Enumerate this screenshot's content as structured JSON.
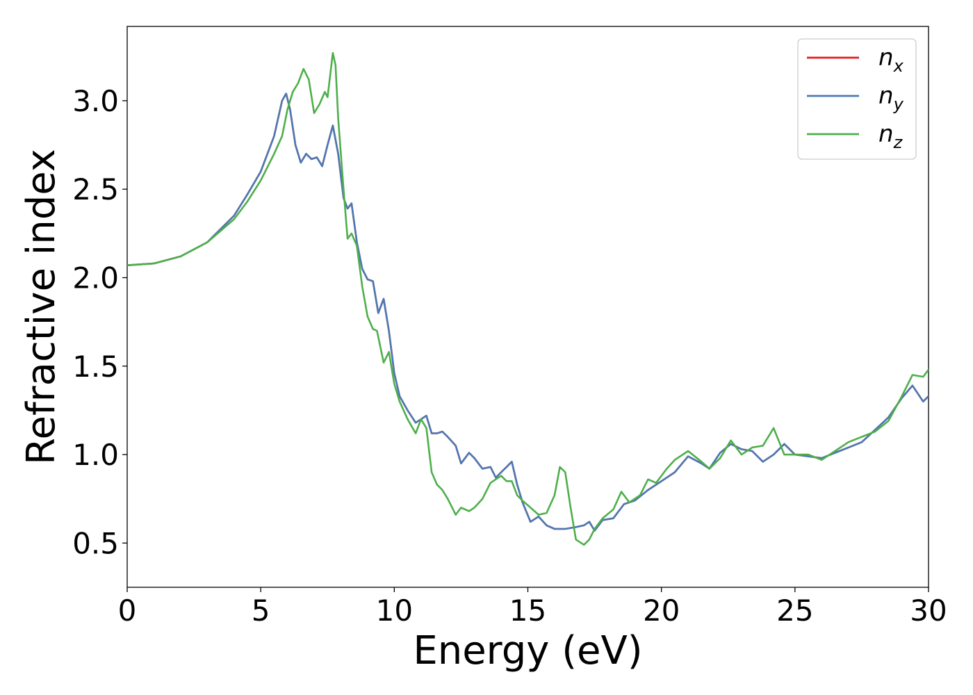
{
  "chart_data": {
    "type": "line",
    "xlabel": "Energy (eV)",
    "ylabel": "Refractive index",
    "xlim": [
      0,
      30
    ],
    "ylim": [
      0.25,
      3.42
    ],
    "xticks": [
      0,
      5,
      10,
      15,
      20,
      25,
      30
    ],
    "xtick_labels": [
      "0",
      "5",
      "10",
      "15",
      "20",
      "25",
      "30"
    ],
    "yticks": [
      0.5,
      1.0,
      1.5,
      2.0,
      2.5,
      3.0
    ],
    "ytick_labels": [
      "0.5",
      "1.0",
      "1.5",
      "2.0",
      "2.5",
      "3.0"
    ],
    "grid": false,
    "legend_position": "top-right",
    "series": [
      {
        "name": "n_x",
        "base": "n",
        "sub": "x",
        "color": "#e41a1c",
        "points": [
          [
            0,
            2.07
          ],
          [
            1,
            2.08
          ],
          [
            2,
            2.12
          ],
          [
            3,
            2.2
          ],
          [
            4,
            2.35
          ],
          [
            4.5,
            2.47
          ],
          [
            5,
            2.6
          ],
          [
            5.5,
            2.8
          ],
          [
            5.8,
            3.0
          ],
          [
            5.95,
            3.04
          ],
          [
            6.1,
            2.95
          ],
          [
            6.3,
            2.75
          ],
          [
            6.5,
            2.65
          ],
          [
            6.7,
            2.7
          ],
          [
            6.9,
            2.67
          ],
          [
            7.1,
            2.68
          ],
          [
            7.3,
            2.63
          ],
          [
            7.5,
            2.75
          ],
          [
            7.7,
            2.86
          ],
          [
            7.9,
            2.7
          ],
          [
            8.1,
            2.45
          ],
          [
            8.25,
            2.39
          ],
          [
            8.4,
            2.42
          ],
          [
            8.6,
            2.2
          ],
          [
            8.8,
            2.05
          ],
          [
            9.0,
            1.99
          ],
          [
            9.2,
            1.98
          ],
          [
            9.4,
            1.8
          ],
          [
            9.6,
            1.88
          ],
          [
            9.8,
            1.7
          ],
          [
            10.0,
            1.46
          ],
          [
            10.2,
            1.33
          ],
          [
            10.5,
            1.25
          ],
          [
            10.8,
            1.18
          ],
          [
            11.0,
            1.2
          ],
          [
            11.2,
            1.22
          ],
          [
            11.4,
            1.12
          ],
          [
            11.6,
            1.12
          ],
          [
            11.8,
            1.13
          ],
          [
            12.0,
            1.1
          ],
          [
            12.3,
            1.05
          ],
          [
            12.5,
            0.95
          ],
          [
            12.8,
            1.01
          ],
          [
            13.0,
            0.98
          ],
          [
            13.3,
            0.92
          ],
          [
            13.6,
            0.93
          ],
          [
            13.8,
            0.87
          ],
          [
            14.0,
            0.9
          ],
          [
            14.2,
            0.93
          ],
          [
            14.4,
            0.96
          ],
          [
            14.6,
            0.83
          ],
          [
            14.8,
            0.73
          ],
          [
            15.1,
            0.62
          ],
          [
            15.4,
            0.65
          ],
          [
            15.7,
            0.6
          ],
          [
            16.0,
            0.58
          ],
          [
            16.4,
            0.58
          ],
          [
            16.8,
            0.59
          ],
          [
            17.1,
            0.6
          ],
          [
            17.3,
            0.62
          ],
          [
            17.5,
            0.57
          ],
          [
            17.8,
            0.63
          ],
          [
            18.2,
            0.64
          ],
          [
            18.6,
            0.72
          ],
          [
            19.0,
            0.74
          ],
          [
            19.5,
            0.8
          ],
          [
            20.0,
            0.85
          ],
          [
            20.5,
            0.9
          ],
          [
            21.0,
            0.99
          ],
          [
            21.5,
            0.95
          ],
          [
            21.8,
            0.92
          ],
          [
            22.2,
            1.01
          ],
          [
            22.6,
            1.06
          ],
          [
            23.0,
            1.03
          ],
          [
            23.4,
            1.02
          ],
          [
            23.8,
            0.96
          ],
          [
            24.2,
            1.0
          ],
          [
            24.6,
            1.06
          ],
          [
            25.0,
            1.0
          ],
          [
            25.5,
            0.99
          ],
          [
            26.0,
            0.98
          ],
          [
            26.5,
            1.01
          ],
          [
            27.0,
            1.04
          ],
          [
            27.5,
            1.07
          ],
          [
            28.0,
            1.14
          ],
          [
            28.5,
            1.21
          ],
          [
            29.0,
            1.32
          ],
          [
            29.4,
            1.39
          ],
          [
            29.8,
            1.3
          ],
          [
            30.0,
            1.33
          ]
        ]
      },
      {
        "name": "n_y",
        "base": "n",
        "sub": "y",
        "color": "#4a79b5",
        "points": [
          [
            0,
            2.07
          ],
          [
            1,
            2.08
          ],
          [
            2,
            2.12
          ],
          [
            3,
            2.2
          ],
          [
            4,
            2.35
          ],
          [
            4.5,
            2.47
          ],
          [
            5,
            2.6
          ],
          [
            5.5,
            2.8
          ],
          [
            5.8,
            3.0
          ],
          [
            5.95,
            3.04
          ],
          [
            6.1,
            2.95
          ],
          [
            6.3,
            2.75
          ],
          [
            6.5,
            2.65
          ],
          [
            6.7,
            2.7
          ],
          [
            6.9,
            2.67
          ],
          [
            7.1,
            2.68
          ],
          [
            7.3,
            2.63
          ],
          [
            7.5,
            2.75
          ],
          [
            7.7,
            2.86
          ],
          [
            7.9,
            2.7
          ],
          [
            8.1,
            2.45
          ],
          [
            8.25,
            2.39
          ],
          [
            8.4,
            2.42
          ],
          [
            8.6,
            2.2
          ],
          [
            8.8,
            2.05
          ],
          [
            9.0,
            1.99
          ],
          [
            9.2,
            1.98
          ],
          [
            9.4,
            1.8
          ],
          [
            9.6,
            1.88
          ],
          [
            9.8,
            1.7
          ],
          [
            10.0,
            1.46
          ],
          [
            10.2,
            1.33
          ],
          [
            10.5,
            1.25
          ],
          [
            10.8,
            1.18
          ],
          [
            11.0,
            1.2
          ],
          [
            11.2,
            1.22
          ],
          [
            11.4,
            1.12
          ],
          [
            11.6,
            1.12
          ],
          [
            11.8,
            1.13
          ],
          [
            12.0,
            1.1
          ],
          [
            12.3,
            1.05
          ],
          [
            12.5,
            0.95
          ],
          [
            12.8,
            1.01
          ],
          [
            13.0,
            0.98
          ],
          [
            13.3,
            0.92
          ],
          [
            13.6,
            0.93
          ],
          [
            13.8,
            0.87
          ],
          [
            14.0,
            0.9
          ],
          [
            14.2,
            0.93
          ],
          [
            14.4,
            0.96
          ],
          [
            14.6,
            0.83
          ],
          [
            14.8,
            0.73
          ],
          [
            15.1,
            0.62
          ],
          [
            15.4,
            0.65
          ],
          [
            15.7,
            0.6
          ],
          [
            16.0,
            0.58
          ],
          [
            16.4,
            0.58
          ],
          [
            16.8,
            0.59
          ],
          [
            17.1,
            0.6
          ],
          [
            17.3,
            0.62
          ],
          [
            17.5,
            0.57
          ],
          [
            17.8,
            0.63
          ],
          [
            18.2,
            0.64
          ],
          [
            18.6,
            0.72
          ],
          [
            19.0,
            0.74
          ],
          [
            19.5,
            0.8
          ],
          [
            20.0,
            0.85
          ],
          [
            20.5,
            0.9
          ],
          [
            21.0,
            0.99
          ],
          [
            21.5,
            0.95
          ],
          [
            21.8,
            0.92
          ],
          [
            22.2,
            1.01
          ],
          [
            22.6,
            1.06
          ],
          [
            23.0,
            1.03
          ],
          [
            23.4,
            1.02
          ],
          [
            23.8,
            0.96
          ],
          [
            24.2,
            1.0
          ],
          [
            24.6,
            1.06
          ],
          [
            25.0,
            1.0
          ],
          [
            25.5,
            0.99
          ],
          [
            26.0,
            0.98
          ],
          [
            26.5,
            1.01
          ],
          [
            27.0,
            1.04
          ],
          [
            27.5,
            1.07
          ],
          [
            28.0,
            1.14
          ],
          [
            28.5,
            1.21
          ],
          [
            29.0,
            1.32
          ],
          [
            29.4,
            1.39
          ],
          [
            29.8,
            1.3
          ],
          [
            30.0,
            1.33
          ]
        ]
      },
      {
        "name": "n_z",
        "base": "n",
        "sub": "z",
        "color": "#4daf4a",
        "points": [
          [
            0,
            2.07
          ],
          [
            1,
            2.08
          ],
          [
            2,
            2.12
          ],
          [
            3,
            2.2
          ],
          [
            4,
            2.33
          ],
          [
            4.5,
            2.43
          ],
          [
            5,
            2.55
          ],
          [
            5.5,
            2.7
          ],
          [
            5.8,
            2.8
          ],
          [
            6.0,
            2.95
          ],
          [
            6.2,
            3.05
          ],
          [
            6.4,
            3.1
          ],
          [
            6.6,
            3.18
          ],
          [
            6.8,
            3.12
          ],
          [
            7.0,
            2.93
          ],
          [
            7.2,
            2.98
          ],
          [
            7.4,
            3.05
          ],
          [
            7.5,
            3.02
          ],
          [
            7.7,
            3.27
          ],
          [
            7.8,
            3.2
          ],
          [
            7.9,
            2.9
          ],
          [
            8.1,
            2.5
          ],
          [
            8.25,
            2.22
          ],
          [
            8.4,
            2.25
          ],
          [
            8.6,
            2.18
          ],
          [
            8.8,
            1.95
          ],
          [
            9.0,
            1.78
          ],
          [
            9.2,
            1.71
          ],
          [
            9.35,
            1.7
          ],
          [
            9.6,
            1.52
          ],
          [
            9.8,
            1.58
          ],
          [
            10.0,
            1.4
          ],
          [
            10.2,
            1.3
          ],
          [
            10.5,
            1.2
          ],
          [
            10.8,
            1.12
          ],
          [
            11.0,
            1.2
          ],
          [
            11.2,
            1.15
          ],
          [
            11.4,
            0.9
          ],
          [
            11.6,
            0.83
          ],
          [
            11.8,
            0.8
          ],
          [
            12.0,
            0.75
          ],
          [
            12.3,
            0.66
          ],
          [
            12.5,
            0.7
          ],
          [
            12.8,
            0.68
          ],
          [
            13.0,
            0.7
          ],
          [
            13.3,
            0.75
          ],
          [
            13.6,
            0.84
          ],
          [
            13.8,
            0.86
          ],
          [
            14.0,
            0.88
          ],
          [
            14.2,
            0.85
          ],
          [
            14.4,
            0.85
          ],
          [
            14.6,
            0.77
          ],
          [
            14.8,
            0.74
          ],
          [
            15.1,
            0.7
          ],
          [
            15.4,
            0.66
          ],
          [
            15.7,
            0.67
          ],
          [
            16.0,
            0.77
          ],
          [
            16.2,
            0.93
          ],
          [
            16.4,
            0.9
          ],
          [
            16.6,
            0.7
          ],
          [
            16.8,
            0.52
          ],
          [
            17.1,
            0.49
          ],
          [
            17.3,
            0.52
          ],
          [
            17.5,
            0.58
          ],
          [
            17.8,
            0.64
          ],
          [
            18.2,
            0.69
          ],
          [
            18.5,
            0.79
          ],
          [
            18.8,
            0.73
          ],
          [
            19.2,
            0.77
          ],
          [
            19.5,
            0.86
          ],
          [
            19.8,
            0.84
          ],
          [
            20.2,
            0.92
          ],
          [
            20.5,
            0.97
          ],
          [
            21.0,
            1.02
          ],
          [
            21.5,
            0.96
          ],
          [
            21.8,
            0.92
          ],
          [
            22.2,
            0.98
          ],
          [
            22.6,
            1.08
          ],
          [
            23.0,
            1.0
          ],
          [
            23.4,
            1.04
          ],
          [
            23.8,
            1.05
          ],
          [
            24.2,
            1.15
          ],
          [
            24.6,
            1.0
          ],
          [
            25.0,
            1.0
          ],
          [
            25.5,
            1.0
          ],
          [
            26.0,
            0.97
          ],
          [
            26.5,
            1.02
          ],
          [
            27.0,
            1.07
          ],
          [
            27.5,
            1.1
          ],
          [
            28.0,
            1.13
          ],
          [
            28.5,
            1.19
          ],
          [
            29.0,
            1.33
          ],
          [
            29.4,
            1.45
          ],
          [
            29.8,
            1.44
          ],
          [
            30.0,
            1.48
          ]
        ]
      }
    ]
  }
}
